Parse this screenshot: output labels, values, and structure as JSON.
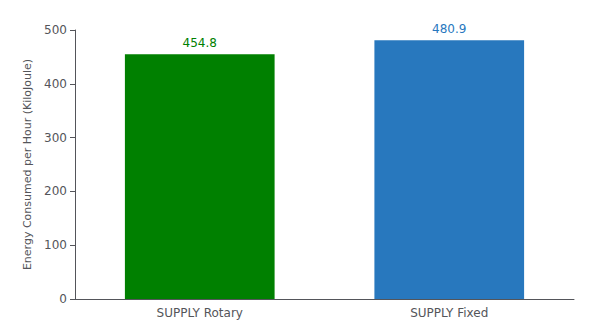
{
  "chart_data": {
    "type": "bar",
    "categories": [
      "SUPPLY Rotary",
      "SUPPLY Fixed"
    ],
    "values": [
      454.8,
      480.9
    ],
    "colors": [
      "#008000",
      "#2878be"
    ],
    "ylabel": "Energy Consumed per Hour (KiloJoule)",
    "ylim": [
      0,
      500
    ],
    "yticks": [
      0,
      100,
      200,
      300,
      400,
      500
    ],
    "grid": false,
    "data_labels": true
  }
}
